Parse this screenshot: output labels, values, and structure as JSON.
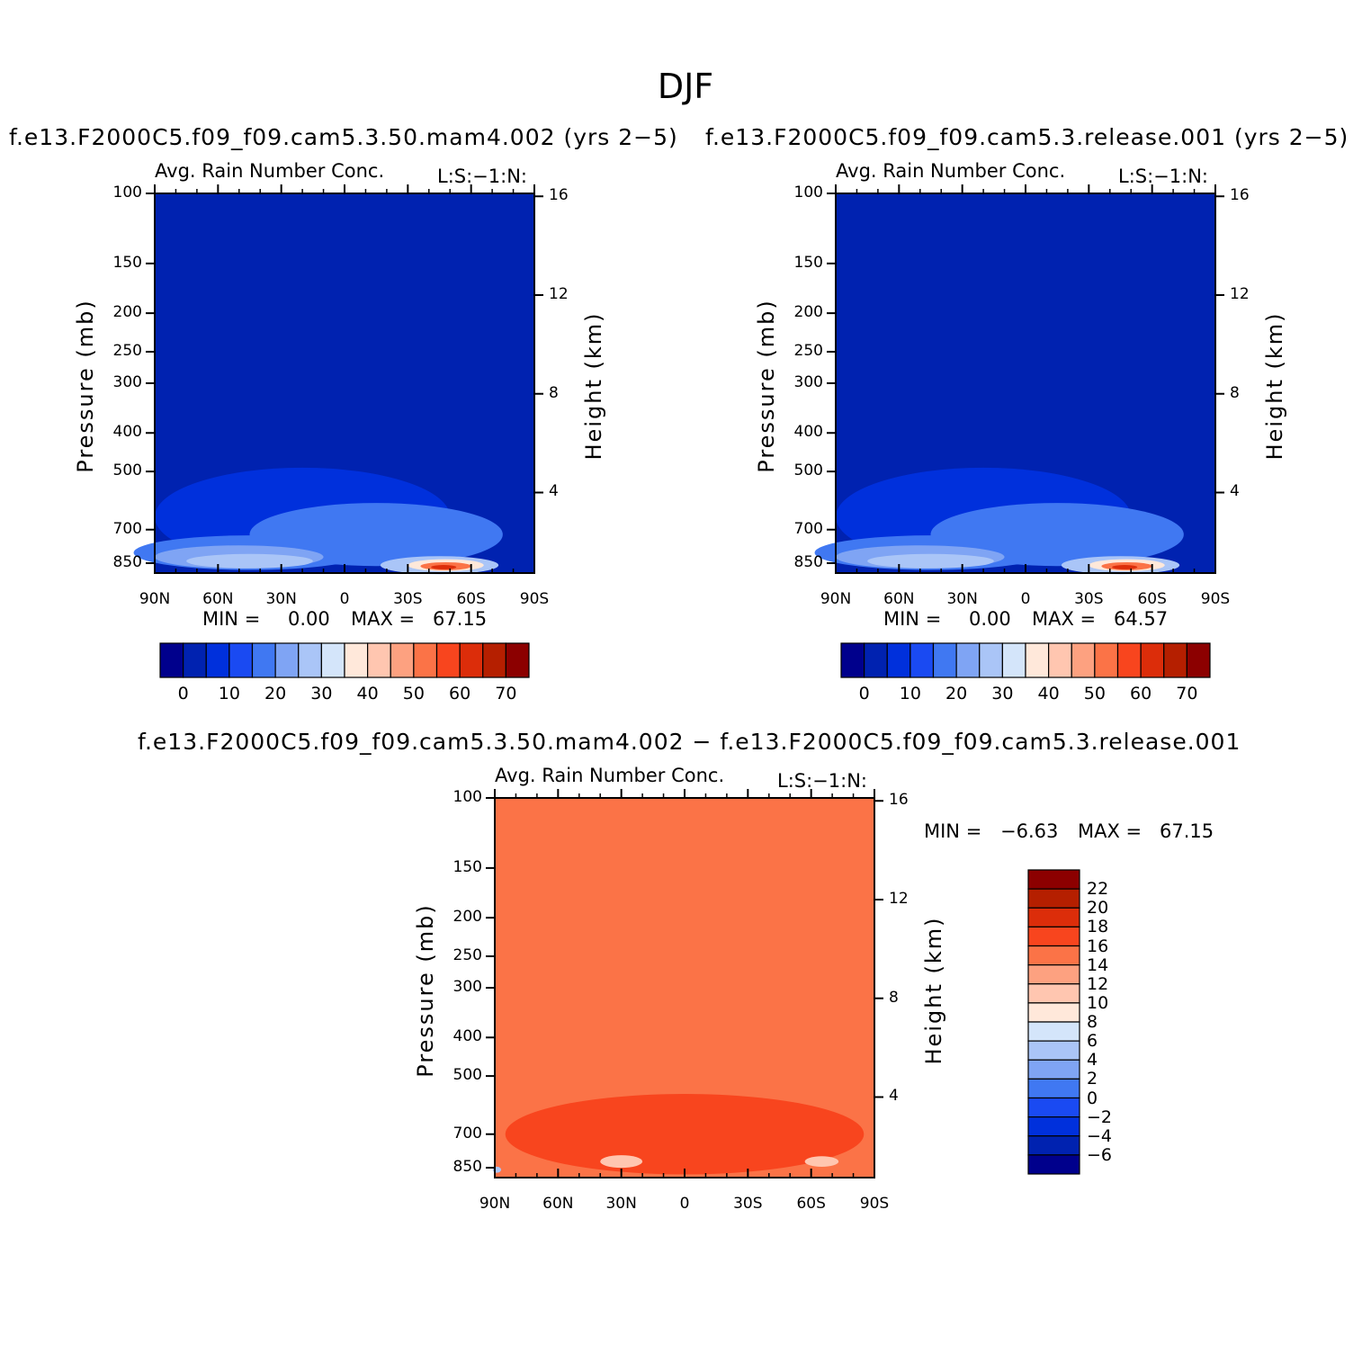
{
  "figure_title": "DJF",
  "colors": {
    "seq_levels": [
      "#00008c",
      "#0022b0",
      "#0030dc",
      "#1a4af2",
      "#4078f2",
      "#7fa4f4",
      "#aac5f7",
      "#d4e5fa",
      "#ffe8da",
      "#ffc6b0",
      "#fda180",
      "#fb7347",
      "#f8451e",
      "#dc2d0a",
      "#b51f00",
      "#8c0000"
    ],
    "diff_levels": [
      "#8c0000",
      "#b51f00",
      "#dc2d0a",
      "#f8451e",
      "#fb7347",
      "#fda180",
      "#ffc6b0",
      "#ffe8da",
      "#d4e5fa",
      "#aac5f7",
      "#7fa4f4",
      "#4078f2",
      "#1a4af2",
      "#0030dc",
      "#0022b0",
      "#00008c"
    ]
  },
  "chart_data": [
    {
      "type": "contour",
      "panel_title": "f.e13.F2000C5.f09_f09.cam5.3.50.mam4.002 (yrs 2−5)",
      "subtitle_left": "Avg. Rain Number Conc.",
      "subtitle_right": "L:S:−1:N:",
      "ylabel": "Pressure (mb)",
      "y2label": "Height (km)",
      "xticks": [
        "90N",
        "60N",
        "30N",
        "0",
        "30S",
        "60S",
        "90S"
      ],
      "yticks": [
        "100",
        "150",
        "200",
        "250",
        "300",
        "400",
        "500",
        "700",
        "850"
      ],
      "y2ticks": [
        "16",
        "12",
        "8",
        "4"
      ],
      "min_label": "MIN =",
      "min_value": "0.00",
      "max_label": "MAX =",
      "max_value": "67.15",
      "colorbar_ticks": [
        "0",
        "10",
        "20",
        "30",
        "40",
        "50",
        "60",
        "70"
      ],
      "field": {
        "background_level": 1,
        "blobs": [
          {
            "lat": 20,
            "p": 650,
            "w": 70,
            "h": 360,
            "level": 2
          },
          {
            "lat": -15,
            "p": 720,
            "w": 60,
            "h": 260,
            "level": 4
          },
          {
            "lat": 45,
            "p": 800,
            "w": 55,
            "h": 160,
            "level": 4
          },
          {
            "lat": 50,
            "p": 820,
            "w": 40,
            "h": 110,
            "level": 5
          },
          {
            "lat": 45,
            "p": 840,
            "w": 30,
            "h": 70,
            "level": 6
          },
          {
            "lat": -45,
            "p": 860,
            "w": 28,
            "h": 90,
            "level": 6
          },
          {
            "lat": -48,
            "p": 860,
            "w": 18,
            "h": 60,
            "level": 8
          },
          {
            "lat": -48,
            "p": 865,
            "w": 12,
            "h": 40,
            "level": 11
          },
          {
            "lat": -47,
            "p": 870,
            "w": 6,
            "h": 22,
            "level": 13
          }
        ]
      }
    },
    {
      "type": "contour",
      "panel_title": "f.e13.F2000C5.f09_f09.cam5.3.release.001 (yrs 2−5)",
      "subtitle_left": "Avg. Rain Number Conc.",
      "subtitle_right": "L:S:−1:N:",
      "ylabel": "Pressure (mb)",
      "y2label": "Height (km)",
      "xticks": [
        "90N",
        "60N",
        "30N",
        "0",
        "30S",
        "60S",
        "90S"
      ],
      "yticks": [
        "100",
        "150",
        "200",
        "250",
        "300",
        "400",
        "500",
        "700",
        "850"
      ],
      "y2ticks": [
        "16",
        "12",
        "8",
        "4"
      ],
      "min_label": "MIN =",
      "min_value": "0.00",
      "max_label": "MAX =",
      "max_value": "64.57",
      "colorbar_ticks": [
        "0",
        "10",
        "20",
        "30",
        "40",
        "50",
        "60",
        "70"
      ],
      "field": {
        "background_level": 1,
        "blobs": [
          {
            "lat": 20,
            "p": 650,
            "w": 70,
            "h": 360,
            "level": 2
          },
          {
            "lat": -15,
            "p": 720,
            "w": 60,
            "h": 260,
            "level": 4
          },
          {
            "lat": 45,
            "p": 800,
            "w": 55,
            "h": 160,
            "level": 4
          },
          {
            "lat": 50,
            "p": 820,
            "w": 40,
            "h": 110,
            "level": 5
          },
          {
            "lat": 45,
            "p": 840,
            "w": 30,
            "h": 70,
            "level": 6
          },
          {
            "lat": -45,
            "p": 860,
            "w": 28,
            "h": 90,
            "level": 6
          },
          {
            "lat": -48,
            "p": 860,
            "w": 18,
            "h": 60,
            "level": 8
          },
          {
            "lat": -48,
            "p": 865,
            "w": 12,
            "h": 40,
            "level": 11
          },
          {
            "lat": -47,
            "p": 870,
            "w": 6,
            "h": 22,
            "level": 13
          }
        ]
      }
    },
    {
      "type": "contour",
      "panel_title": "f.e13.F2000C5.f09_f09.cam5.3.50.mam4.002 − f.e13.F2000C5.f09_f09.cam5.3.release.001",
      "subtitle_left": "Avg. Rain Number Conc.",
      "subtitle_right": "L:S:−1:N:",
      "ylabel": "Pressure (mb)",
      "y2label": "Height (km)",
      "xticks": [
        "90N",
        "60N",
        "30N",
        "0",
        "30S",
        "60S",
        "90S"
      ],
      "yticks": [
        "100",
        "150",
        "200",
        "250",
        "300",
        "400",
        "500",
        "700",
        "850"
      ],
      "y2ticks": [
        "16",
        "12",
        "8",
        "4"
      ],
      "min_label": "MIN =",
      "min_value": "−6.63",
      "max_label": "MAX =",
      "max_value": "67.15",
      "colorbar_ticks": [
        "22",
        "20",
        "18",
        "16",
        "14",
        "12",
        "10",
        "8",
        "6",
        "4",
        "2",
        "0",
        "−2",
        "−4",
        "−6"
      ],
      "field": {
        "background_level": 11,
        "blobs": [
          {
            "lat": 0,
            "p": 700,
            "w": 85,
            "h": 320,
            "level": 12
          },
          {
            "lat": 30,
            "p": 820,
            "w": 10,
            "h": 60,
            "level": 9
          },
          {
            "lat": -65,
            "p": 820,
            "w": 8,
            "h": 50,
            "level": 9
          },
          {
            "lat": 89,
            "p": 860,
            "w": 2,
            "h": 30,
            "level": 6
          }
        ]
      }
    }
  ]
}
